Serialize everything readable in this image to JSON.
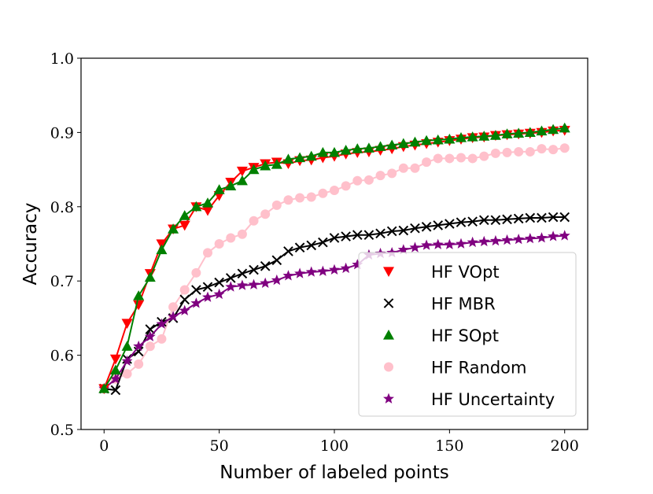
{
  "chart_data": {
    "type": "line",
    "title": "",
    "xlabel": "Number of labeled points",
    "ylabel": "Accuracy",
    "xlim": [
      -10,
      210
    ],
    "ylim": [
      0.5,
      1.0
    ],
    "xticks": [
      0,
      50,
      100,
      150,
      200
    ],
    "yticks": [
      0.5,
      0.6,
      0.7,
      0.8,
      0.9,
      1.0
    ],
    "ytick_labels": [
      "0.5",
      "0.6",
      "0.7",
      "0.8",
      "0.9",
      "1.0"
    ],
    "grid": false,
    "legend_position": "lower-right",
    "x": [
      0,
      5,
      10,
      15,
      20,
      25,
      30,
      35,
      40,
      45,
      50,
      55,
      60,
      65,
      70,
      75,
      80,
      85,
      90,
      95,
      100,
      105,
      110,
      115,
      120,
      125,
      130,
      135,
      140,
      145,
      150,
      155,
      160,
      165,
      170,
      175,
      180,
      185,
      190,
      195,
      200
    ],
    "series": [
      {
        "name": "HF VOpt",
        "color": "#ff0000",
        "marker": "triangle-down",
        "values": [
          0.555,
          0.595,
          0.643,
          0.668,
          0.71,
          0.75,
          0.77,
          0.775,
          0.8,
          0.795,
          0.815,
          0.833,
          0.848,
          0.853,
          0.858,
          0.86,
          0.858,
          0.862,
          0.863,
          0.866,
          0.868,
          0.871,
          0.873,
          0.874,
          0.876,
          0.878,
          0.881,
          0.883,
          0.885,
          0.887,
          0.889,
          0.891,
          0.893,
          0.894,
          0.896,
          0.897,
          0.898,
          0.899,
          0.9,
          0.902,
          0.903
        ]
      },
      {
        "name": "HF MBR",
        "color": "#000000",
        "marker": "x",
        "values": [
          0.555,
          0.553,
          0.595,
          0.605,
          0.635,
          0.645,
          0.65,
          0.675,
          0.688,
          0.692,
          0.698,
          0.704,
          0.71,
          0.715,
          0.72,
          0.728,
          0.74,
          0.745,
          0.748,
          0.752,
          0.758,
          0.76,
          0.762,
          0.762,
          0.764,
          0.767,
          0.768,
          0.771,
          0.773,
          0.775,
          0.777,
          0.779,
          0.78,
          0.782,
          0.782,
          0.783,
          0.784,
          0.785,
          0.785,
          0.786,
          0.786
        ]
      },
      {
        "name": "HF SOpt",
        "color": "#008000",
        "marker": "triangle-up",
        "values": [
          0.555,
          0.58,
          0.612,
          0.68,
          0.705,
          0.742,
          0.77,
          0.788,
          0.8,
          0.805,
          0.823,
          0.828,
          0.835,
          0.85,
          0.855,
          0.857,
          0.864,
          0.866,
          0.868,
          0.873,
          0.873,
          0.876,
          0.878,
          0.879,
          0.881,
          0.883,
          0.885,
          0.887,
          0.889,
          0.89,
          0.891,
          0.893,
          0.894,
          0.895,
          0.896,
          0.898,
          0.899,
          0.9,
          0.902,
          0.904,
          0.906
        ]
      },
      {
        "name": "HF Random",
        "color": "#ffc0cb",
        "marker": "circle",
        "values": [
          0.555,
          0.568,
          0.575,
          0.588,
          0.612,
          0.622,
          0.665,
          0.688,
          0.711,
          0.738,
          0.75,
          0.758,
          0.763,
          0.781,
          0.79,
          0.802,
          0.809,
          0.812,
          0.813,
          0.818,
          0.822,
          0.828,
          0.835,
          0.836,
          0.842,
          0.845,
          0.852,
          0.852,
          0.86,
          0.865,
          0.865,
          0.866,
          0.865,
          0.868,
          0.872,
          0.873,
          0.874,
          0.874,
          0.878,
          0.877,
          0.879
        ]
      },
      {
        "name": "HF Uncertainty",
        "color": "#800080",
        "marker": "star",
        "values": [
          0.555,
          0.568,
          0.592,
          0.612,
          0.625,
          0.642,
          0.652,
          0.66,
          0.67,
          0.678,
          0.682,
          0.692,
          0.694,
          0.695,
          0.697,
          0.701,
          0.707,
          0.71,
          0.712,
          0.713,
          0.715,
          0.717,
          0.722,
          0.735,
          0.737,
          0.738,
          0.742,
          0.745,
          0.748,
          0.749,
          0.749,
          0.75,
          0.752,
          0.753,
          0.754,
          0.755,
          0.756,
          0.757,
          0.758,
          0.76,
          0.761
        ]
      }
    ]
  }
}
